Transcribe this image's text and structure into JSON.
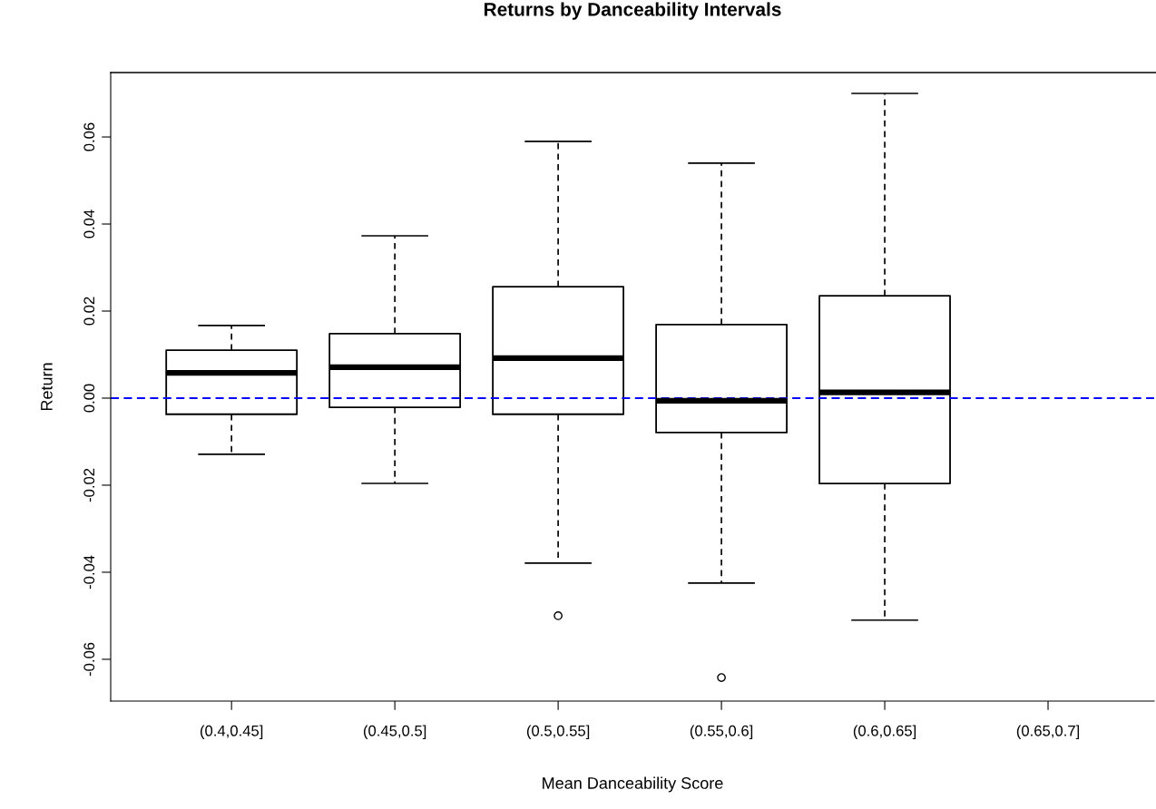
{
  "chart_data": {
    "type": "box",
    "title": "Returns by Danceability Intervals",
    "xlabel": "Mean Danceability Score",
    "ylabel": "Return",
    "categories": [
      "(0.4,0.45]",
      "(0.45,0.5]",
      "(0.5,0.55]",
      "(0.55,0.6]",
      "(0.6,0.65]",
      "(0.65,0.7]"
    ],
    "boxes": [
      {
        "low": -0.0129,
        "q1": -0.0037,
        "median": 0.0058,
        "q3": 0.011,
        "high": 0.0167
      },
      {
        "low": -0.0196,
        "q1": -0.0021,
        "median": 0.0071,
        "q3": 0.0148,
        "high": 0.0373
      },
      {
        "low": -0.0379,
        "q1": -0.0037,
        "median": 0.0092,
        "q3": 0.0256,
        "high": 0.059,
        "outliers": [
          -0.05
        ]
      },
      {
        "low": -0.0425,
        "q1": -0.0079,
        "median": -0.0006,
        "q3": 0.0169,
        "high": 0.054,
        "outliers": [
          -0.0642
        ]
      },
      {
        "low": -0.051,
        "q1": -0.0196,
        "median": 0.0013,
        "q3": 0.0235,
        "high": 0.07
      },
      null
    ],
    "ylim": [
      -0.0696,
      0.0748
    ],
    "yticks": [
      -0.06,
      -0.04,
      -0.02,
      {
        "value": 0,
        "label": "0.00"
      },
      0.02,
      0.04,
      0.06
    ],
    "ref_lines": [
      {
        "axis": "y",
        "value": 0,
        "color": "#0000ff",
        "line_style": "dashed"
      }
    ],
    "grid": false,
    "legend": false
  }
}
